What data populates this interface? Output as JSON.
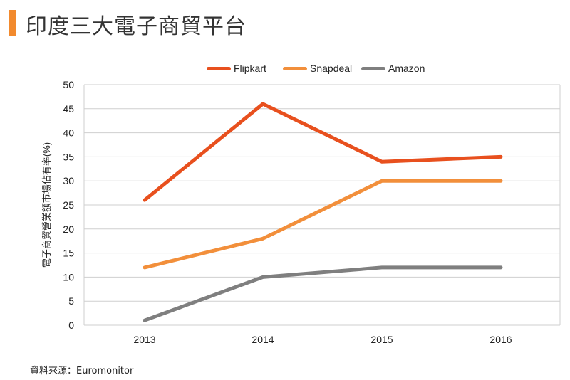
{
  "page": {
    "title": "印度三大電子商貿平台",
    "source": "資料來源：Euromonitor"
  },
  "colors": {
    "title_accent": "#f28a2e",
    "grid": "#cfcfcf"
  },
  "chart_data": {
    "type": "line",
    "title": "印度三大電子商貿平台",
    "xlabel": "",
    "ylabel": "電子商貿營業額市場佔有率(%)",
    "categories": [
      "2013",
      "2014",
      "2015",
      "2016"
    ],
    "ylim": [
      0,
      50
    ],
    "yticks": [
      "0",
      "5",
      "10",
      "15",
      "20",
      "25",
      "30",
      "35",
      "40",
      "45",
      "50"
    ],
    "grid": "horizontal",
    "legend_position": "top-center",
    "series": [
      {
        "name": "Flipkart",
        "color": "#e8501e",
        "values": [
          26,
          46,
          34,
          35
        ]
      },
      {
        "name": "Snapdeal",
        "color": "#f28f3b",
        "values": [
          12,
          18,
          30,
          30
        ]
      },
      {
        "name": "Amazon",
        "color": "#7f7f7f",
        "values": [
          1,
          10,
          12,
          12
        ]
      }
    ]
  }
}
